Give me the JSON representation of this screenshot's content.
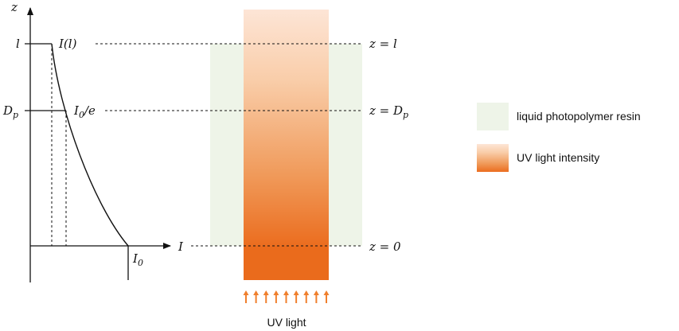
{
  "diagram": {
    "axis_labels": {
      "z": "z",
      "I": "I"
    },
    "tick_labels": {
      "l": "l",
      "Dp": "D",
      "Dp_sub": "p",
      "I0": "I",
      "I0_sub": "0"
    },
    "curve_labels": {
      "Il": "I(l)",
      "I0e": "I",
      "I0e_sub": "0",
      "I0e_rest": "/e"
    },
    "level_labels": {
      "top": "z = l",
      "middle": "z = D",
      "middle_sub": "p",
      "bottom": "z = 0"
    },
    "colors": {
      "resin": "#eef4e8",
      "uv_light": "#ffe3d3",
      "uv_strong": "#ea6b1c",
      "arrows": "#f07f2d",
      "lines": "#111111"
    }
  },
  "legend": {
    "resin_label": "liquid photopolymer resin",
    "uv_label": "UV light intensity"
  },
  "uv_source_label": "UV light",
  "arrow_count": 9
}
